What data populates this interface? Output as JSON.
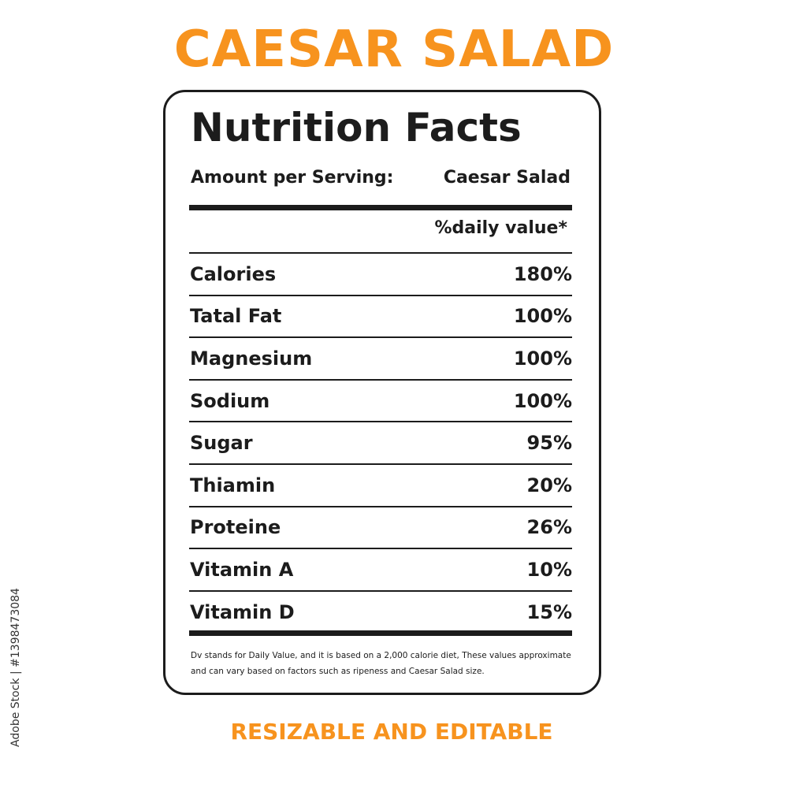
{
  "headline": "CAESAR SALAD",
  "label": {
    "title": "Nutrition Facts",
    "serving_label": "Amount per Serving:",
    "serving_value": "Caesar Salad",
    "dv_header": "%daily value*",
    "rows": [
      {
        "nutrient": "Calories",
        "value": "180%"
      },
      {
        "nutrient": "Tatal Fat",
        "value": "100%"
      },
      {
        "nutrient": "Magnesium",
        "value": "100%"
      },
      {
        "nutrient": "Sodium",
        "value": "100%"
      },
      {
        "nutrient": "Sugar",
        "value": "95%"
      },
      {
        "nutrient": "Thiamin",
        "value": "20%"
      },
      {
        "nutrient": "Proteine",
        "value": "26%"
      },
      {
        "nutrient": "Vitamin A",
        "value": "10%"
      },
      {
        "nutrient": "Vitamin D",
        "value": "15%"
      }
    ],
    "footnote_line1": "Dv stands for Daily Value, and it is based on a 2,000 calorie diet, These values approximate",
    "footnote_line2": "and can vary based on factors such as ripeness and Caesar Salad size."
  },
  "subline": "RESIZABLE AND EDITABLE",
  "watermark": "Adobe Stock | #1398473084",
  "colors": {
    "accent": "#f7931e",
    "ink": "#1c1c1c"
  }
}
